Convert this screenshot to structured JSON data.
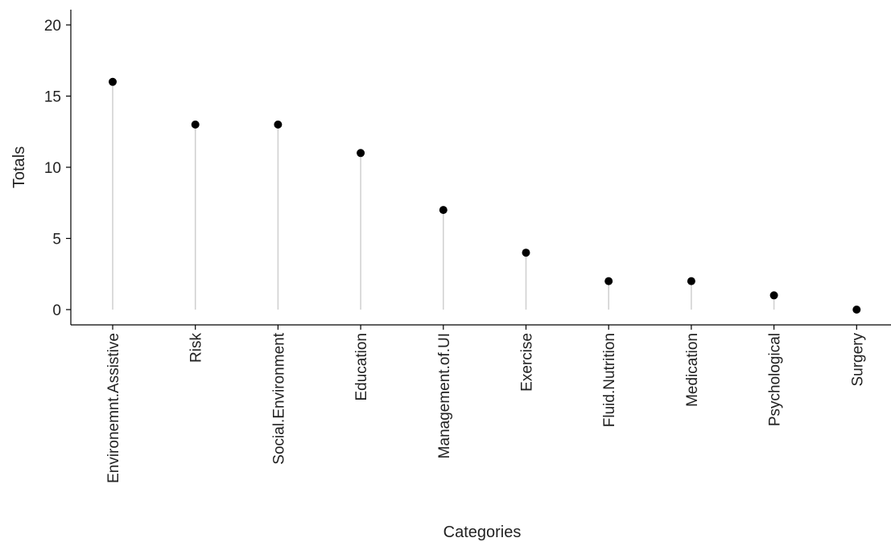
{
  "chart_data": {
    "type": "lollipop",
    "title": "",
    "xlabel": "Categories",
    "ylabel": "Totals",
    "ylim": [
      0,
      20
    ],
    "yticks": [
      0,
      5,
      10,
      15,
      20
    ],
    "categories": [
      "Environemnt.Assistive",
      "Risk",
      "Social.Environment",
      "Education",
      "Management.of.UI",
      "Exercise",
      "Fluid.Nutrition",
      "Medication",
      "Psychological",
      "Surgery"
    ],
    "values": [
      16,
      13,
      13,
      11,
      7,
      4,
      2,
      2,
      1,
      0
    ],
    "grid": false,
    "legend": "none",
    "colors": {
      "point": "#000000",
      "stem": "#cfcfcf",
      "axis": "#000000"
    }
  }
}
